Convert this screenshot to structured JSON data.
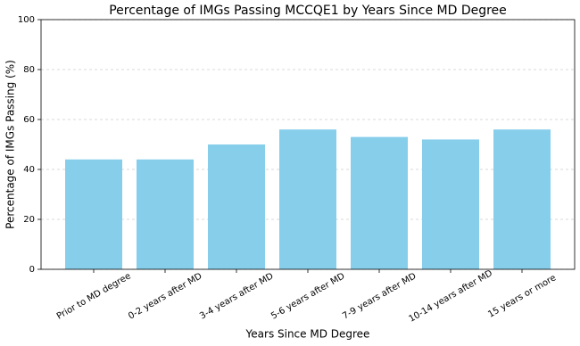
{
  "chart_data": {
    "type": "bar",
    "title": "Percentage of IMGs Passing MCCQE1 by Years Since MD Degree",
    "xlabel": "Years Since MD Degree",
    "ylabel": "Percentage of IMGs Passing (%)",
    "categories": [
      "Prior to MD degree",
      "0-2 years after MD",
      "3-4 years after MD",
      "5-6 years after MD",
      "7-9 years after MD",
      "10-14 years after MD",
      "15 years or more"
    ],
    "values": [
      44,
      44,
      50,
      56,
      53,
      52,
      56
    ],
    "color": "#87ceeb",
    "ylim": [
      0,
      100
    ],
    "yticks": [
      0,
      20,
      40,
      60,
      80,
      100
    ],
    "grid": true
  }
}
